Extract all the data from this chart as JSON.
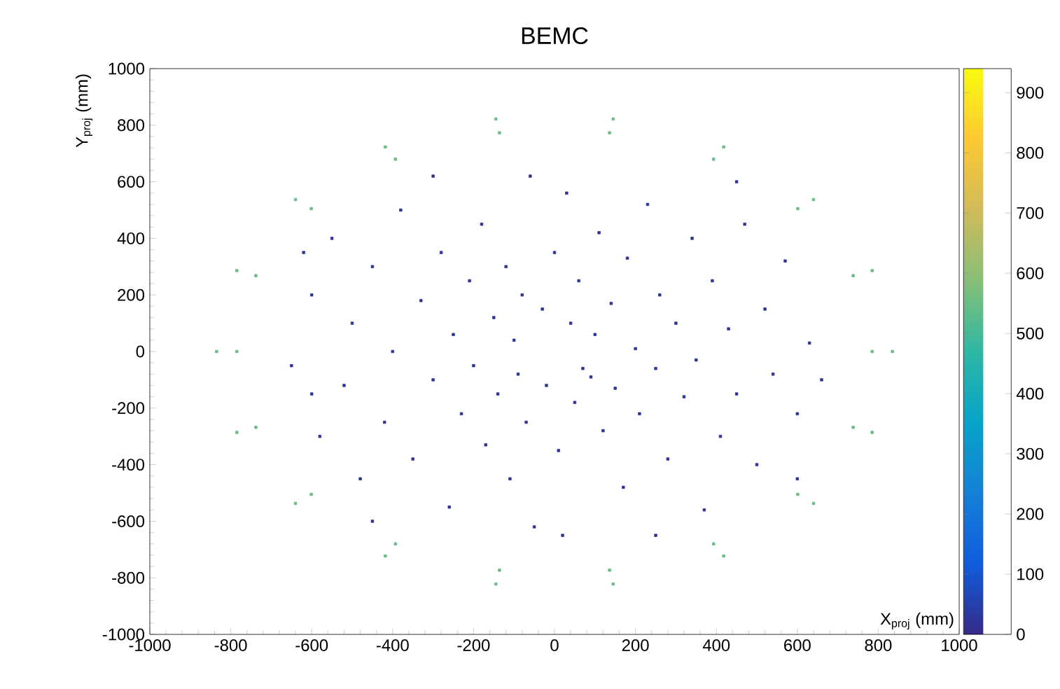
{
  "chart_data": {
    "type": "scatter",
    "title": "BEMC",
    "xlabel": "X$_{proj}$ (mm)",
    "ylabel": "Y$_{proj}$ (mm)",
    "clim": [
      0,
      940
    ],
    "cticks": [
      0,
      100,
      200,
      300,
      400,
      500,
      600,
      700,
      800,
      900
    ],
    "xlim": [
      -1000,
      1000
    ],
    "ylim": [
      -1000,
      1000
    ],
    "xticks": [
      -1000,
      -800,
      -600,
      -400,
      -200,
      0,
      200,
      400,
      600,
      800,
      1000
    ],
    "yticks": [
      -1000,
      -800,
      -600,
      -400,
      -200,
      0,
      200,
      400,
      600,
      800,
      1000
    ],
    "marker": "square",
    "series": [
      {
        "x": [
          -650,
          -600,
          -580,
          -550,
          -520,
          -500,
          -480,
          -450,
          -420,
          -400,
          -380,
          -350,
          -330,
          -300,
          -280,
          -260,
          -250,
          -230,
          -210,
          -200,
          -180,
          -170,
          -150,
          -140,
          -120,
          -110,
          -100,
          -90,
          -80,
          -70,
          -60,
          -50,
          -30,
          -20,
          0,
          10,
          20,
          30,
          40,
          50,
          60,
          70,
          90,
          100,
          110,
          120,
          140,
          150,
          170,
          180,
          200,
          210,
          230,
          250,
          260,
          280,
          300,
          320,
          340,
          350,
          370,
          390,
          410,
          430,
          450,
          470,
          500,
          520,
          540,
          570,
          600,
          630,
          660,
          -600,
          -450,
          450,
          -300,
          250,
          600,
          -620
        ],
        "values": [
          -50,
          200,
          -300,
          400,
          -120,
          100,
          -450,
          300,
          -250,
          0,
          500,
          -380,
          180,
          -100,
          350,
          -550,
          60,
          -220,
          250,
          -50,
          450,
          -330,
          120,
          -150,
          300,
          -450,
          40,
          -80,
          200,
          -250,
          620,
          -620,
          150,
          -120,
          350,
          -350,
          -650,
          560,
          100,
          -180,
          250,
          -60,
          -90,
          60,
          420,
          -280,
          170,
          -130,
          -480,
          330,
          10,
          -220,
          520,
          -60,
          200,
          -380,
          100,
          -160,
          400,
          -30,
          -560,
          250,
          -300,
          80,
          -150,
          450,
          -400,
          150,
          -80,
          320,
          -220,
          30,
          -100,
          -150,
          -600,
          600,
          620,
          -650,
          -450,
          350
        ],
        "cvalues": [
          20,
          20,
          20,
          20,
          20,
          20,
          20,
          20,
          20,
          20,
          20,
          20,
          20,
          20,
          20,
          20,
          20,
          20,
          20,
          20,
          20,
          20,
          20,
          20,
          20,
          20,
          20,
          20,
          20,
          20,
          20,
          20,
          20,
          20,
          20,
          20,
          20,
          20,
          20,
          20,
          20,
          20,
          20,
          20,
          20,
          20,
          20,
          20,
          20,
          20,
          20,
          20,
          20,
          20,
          20,
          20,
          20,
          20,
          20,
          20,
          20,
          20,
          20,
          20,
          20,
          20,
          20,
          20,
          20,
          20,
          20,
          20,
          20,
          20,
          20,
          20,
          20,
          20,
          20,
          20
        ]
      },
      {
        "x": [
          835,
          785,
          640,
          418,
          145,
          -145,
          -418,
          -640,
          -785,
          -835,
          -785,
          -640,
          -418,
          -145,
          145,
          418,
          640,
          785
        ],
        "values": [
          0,
          286,
          537,
          723,
          822,
          822,
          723,
          537,
          286,
          0,
          -286,
          -537,
          -723,
          -822,
          -822,
          -723,
          -537,
          -286
        ],
        "cvalues": [
          550,
          550,
          550,
          550,
          550,
          550,
          550,
          550,
          550,
          550,
          550,
          550,
          550,
          550,
          550,
          550,
          550,
          550
        ]
      },
      {
        "x": [
          785,
          738,
          601,
          393,
          136,
          -136,
          -393,
          -601,
          -738,
          -785,
          -738,
          -601,
          -393,
          -136,
          136,
          393,
          601,
          738
        ],
        "values": [
          0,
          268,
          505,
          680,
          773,
          773,
          680,
          505,
          268,
          0,
          -268,
          -505,
          -680,
          -773,
          -773,
          -680,
          -505,
          -268
        ],
        "cvalues": [
          550,
          550,
          550,
          550,
          550,
          550,
          550,
          550,
          550,
          550,
          550,
          550,
          550,
          550,
          550,
          550,
          550,
          550
        ]
      }
    ]
  }
}
